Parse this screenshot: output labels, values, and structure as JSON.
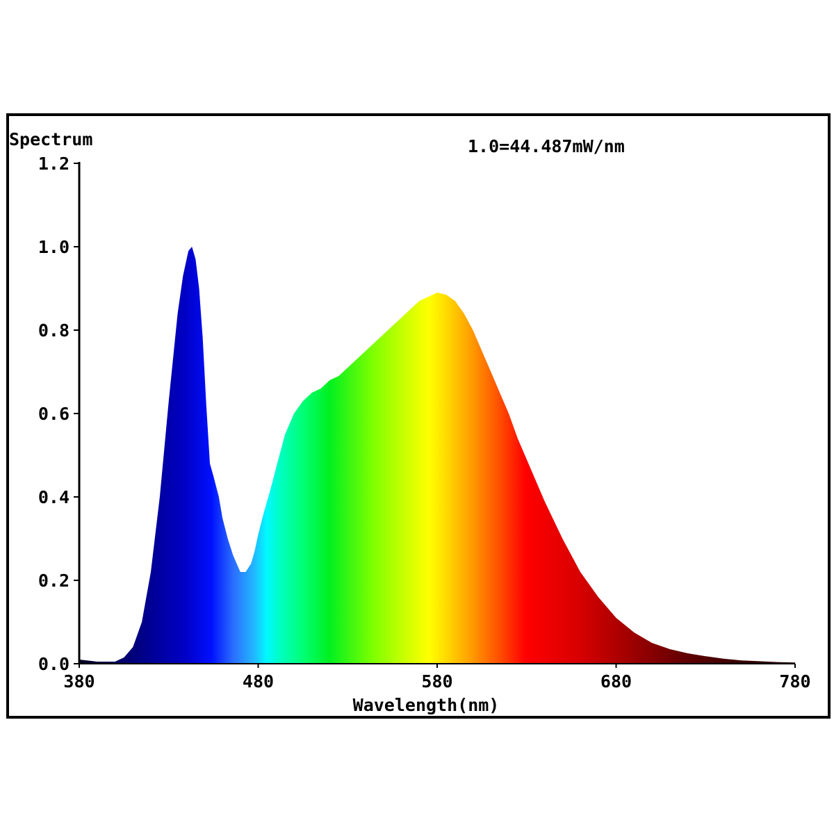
{
  "chart_data": {
    "type": "area",
    "title": "",
    "ylabel": "Spectrum",
    "xlabel": "Wavelength(nm)",
    "annotation": "1.0=44.487mW/nm",
    "xlim": [
      380,
      780
    ],
    "ylim": [
      0,
      1.2
    ],
    "x_ticks": [
      "380",
      "480",
      "580",
      "680",
      "780"
    ],
    "y_ticks": [
      "0.0",
      "0.2",
      "0.4",
      "0.6",
      "0.8",
      "1.0",
      "1.2"
    ],
    "fill": "spectral colors by wavelength",
    "series": [
      {
        "x": [
          380,
          390,
          400,
          405,
          410,
          415,
          420,
          425,
          430,
          435,
          438,
          441,
          443,
          445,
          447,
          449,
          451,
          453,
          455,
          458,
          460,
          463,
          466,
          470,
          473,
          476,
          478,
          480,
          483,
          487,
          490,
          495,
          500,
          505,
          510,
          515,
          520,
          525,
          530,
          535,
          540,
          545,
          550,
          555,
          560,
          565,
          570,
          575,
          580,
          585,
          590,
          595,
          600,
          605,
          610,
          615,
          620,
          625,
          630,
          640,
          650,
          660,
          670,
          680,
          690,
          700,
          710,
          720,
          730,
          740,
          750,
          760,
          770,
          780
        ],
        "y": [
          0.01,
          0.005,
          0.005,
          0.015,
          0.04,
          0.1,
          0.22,
          0.4,
          0.63,
          0.84,
          0.93,
          0.99,
          1.0,
          0.97,
          0.9,
          0.78,
          0.62,
          0.48,
          0.45,
          0.4,
          0.35,
          0.3,
          0.26,
          0.22,
          0.22,
          0.24,
          0.27,
          0.31,
          0.36,
          0.42,
          0.47,
          0.55,
          0.6,
          0.63,
          0.65,
          0.66,
          0.68,
          0.69,
          0.71,
          0.73,
          0.75,
          0.77,
          0.79,
          0.81,
          0.83,
          0.85,
          0.87,
          0.88,
          0.89,
          0.885,
          0.87,
          0.84,
          0.8,
          0.75,
          0.7,
          0.65,
          0.6,
          0.54,
          0.49,
          0.39,
          0.3,
          0.22,
          0.16,
          0.11,
          0.075,
          0.05,
          0.035,
          0.025,
          0.018,
          0.012,
          0.008,
          0.006,
          0.004,
          0.003
        ]
      }
    ]
  }
}
